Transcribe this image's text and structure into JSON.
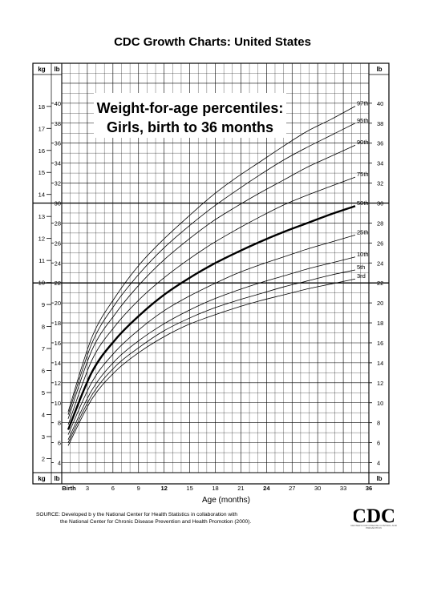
{
  "header": {
    "title": "CDC Growth Charts: United States"
  },
  "chart_data": {
    "type": "line",
    "title": "Weight-for-age percentiles:",
    "subtitle": "Girls, birth to 36 months",
    "xlabel": "Age (months)",
    "unit_left": "kg",
    "unit_lb": "lb",
    "xlim": [
      0,
      36
    ],
    "ylim_lb": [
      3,
      44
    ],
    "ylim_kg": [
      1.36,
      19.96
    ],
    "x_ticks": [
      "Birth",
      "3",
      "6",
      "9",
      "12",
      "15",
      "18",
      "21",
      "24",
      "27",
      "30",
      "33",
      "36"
    ],
    "kg_ticks": [
      "2",
      "3",
      "4",
      "5",
      "6",
      "7",
      "8",
      "9",
      "10",
      "11",
      "12",
      "13",
      "14",
      "15",
      "16",
      "17",
      "18"
    ],
    "lb_ticks": [
      "4",
      "6",
      "8",
      "10",
      "12",
      "14",
      "16",
      "18",
      "20",
      "22",
      "24",
      "26",
      "28",
      "30",
      "32",
      "34",
      "36",
      "38",
      "40"
    ],
    "x": [
      0,
      3,
      6,
      9,
      12,
      15,
      18,
      21,
      24,
      27,
      30,
      33,
      36
    ],
    "series": [
      {
        "name": "97th",
        "values": [
          9.1,
          16.6,
          20.7,
          23.9,
          26.4,
          28.6,
          30.7,
          32.5,
          34.1,
          35.7,
          37.2,
          38.4,
          39.7
        ]
      },
      {
        "name": "95th",
        "values": [
          8.8,
          16.0,
          20.0,
          23.0,
          25.5,
          27.6,
          29.5,
          31.2,
          32.8,
          34.3,
          35.6,
          36.8,
          38.0
        ]
      },
      {
        "name": "90th",
        "values": [
          8.4,
          15.3,
          19.0,
          21.9,
          24.3,
          26.3,
          28.1,
          29.6,
          31.0,
          32.3,
          33.6,
          34.7,
          35.8
        ]
      },
      {
        "name": "75th",
        "values": [
          7.8,
          14.3,
          17.8,
          20.4,
          22.5,
          24.3,
          25.9,
          27.3,
          28.6,
          29.8,
          30.8,
          31.7,
          32.6
        ]
      },
      {
        "name": "50th",
        "values": [
          7.3,
          13.1,
          16.4,
          18.8,
          20.8,
          22.4,
          23.8,
          25.0,
          26.1,
          27.1,
          28.0,
          28.9,
          29.7
        ]
      },
      {
        "name": "25th",
        "values": [
          6.8,
          12.1,
          15.2,
          17.4,
          19.2,
          20.6,
          21.8,
          22.9,
          23.8,
          24.6,
          25.4,
          26.1,
          26.8
        ]
      },
      {
        "name": "10th",
        "values": [
          6.3,
          11.3,
          14.3,
          16.3,
          17.9,
          19.2,
          20.3,
          21.2,
          22.0,
          22.7,
          23.4,
          24.0,
          24.6
        ]
      },
      {
        "name": "5th",
        "values": [
          6.0,
          10.8,
          13.7,
          15.6,
          17.2,
          18.4,
          19.4,
          20.2,
          20.9,
          21.6,
          22.2,
          22.8,
          23.3
        ]
      },
      {
        "name": "3rd",
        "values": [
          5.7,
          10.4,
          13.2,
          15.1,
          16.6,
          17.8,
          18.7,
          19.5,
          20.2,
          20.8,
          21.4,
          21.9,
          22.4
        ]
      }
    ],
    "emphasized_series": "50th",
    "grid": true,
    "legend": "labels at right end of each curve",
    "colors": {
      "line": "#000000",
      "grid": "#000000",
      "background": "#ffffff"
    }
  },
  "footer": {
    "source_line1": "SOURCE: Developed b y the National Center for Health Statistics in collaboration with",
    "source_line2": "the National Center for Chronic Disease Prevention and Health Promotion (2000).",
    "logo_text": "CDC",
    "logo_tagline": "CENTERS FOR DISEASE CONTROL AND PREVENTION"
  }
}
